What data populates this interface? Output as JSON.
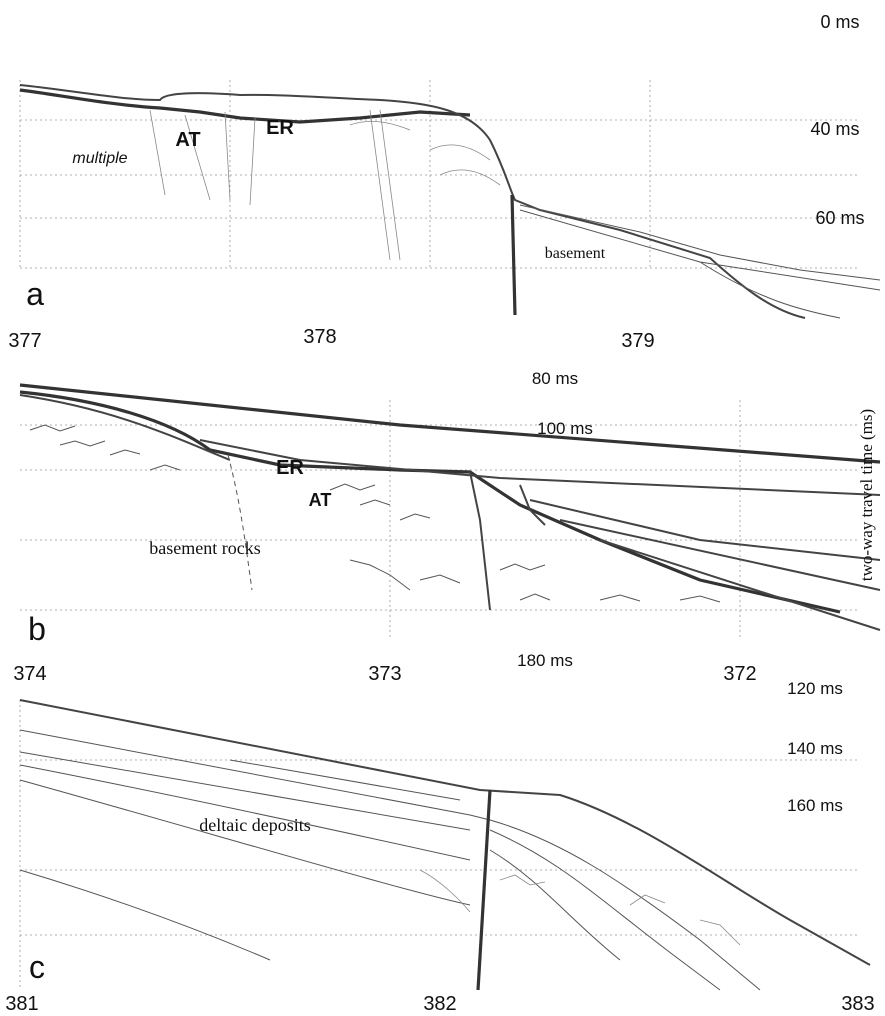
{
  "figure": {
    "axis_title": "two-way travel time (ms)",
    "panels": [
      {
        "label": "a",
        "distances": [
          "377",
          "378",
          "379"
        ],
        "times": [
          "0 ms",
          "40 ms",
          "60 ms"
        ],
        "annotations": [
          "AT",
          "ER",
          "multiple",
          "basement"
        ]
      },
      {
        "label": "b",
        "distances": [
          "374",
          "373",
          "372"
        ],
        "times": [
          "80 ms",
          "100 ms",
          "180 ms"
        ],
        "annotations": [
          "ER",
          "AT",
          "basement rocks"
        ]
      },
      {
        "label": "c",
        "distances": [
          "381",
          "382",
          "383"
        ],
        "times": [
          "120 ms",
          "140 ms",
          "160 ms"
        ],
        "annotations": [
          "deltaic deposits"
        ]
      }
    ]
  }
}
